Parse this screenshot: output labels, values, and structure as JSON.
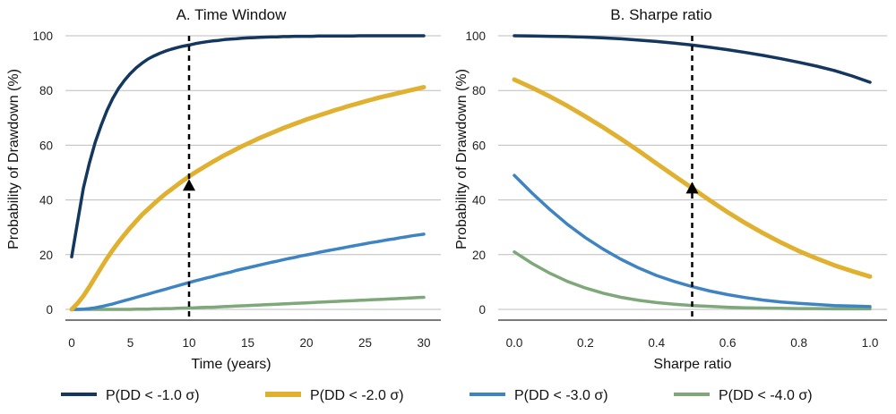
{
  "chart_data": [
    {
      "type": "line",
      "title": "A. Time Window",
      "xlabel": "Time (years)",
      "ylabel": "Probability of Drawdown (%)",
      "xlim": [
        0,
        30
      ],
      "ylim": [
        0,
        100
      ],
      "xticks": [
        "0",
        "5",
        "10",
        "15",
        "20",
        "25",
        "30"
      ],
      "yticks": [
        "0",
        "20",
        "40",
        "60",
        "80",
        "100"
      ],
      "grid": "horizontal",
      "x": [
        0,
        0.5,
        1,
        1.5,
        2,
        2.5,
        3,
        3.5,
        4,
        4.5,
        5,
        5.5,
        6,
        6.5,
        7,
        7.5,
        8,
        8.5,
        9,
        9.5,
        10,
        10.5,
        11,
        11.5,
        12,
        12.5,
        13,
        13.5,
        14,
        14.5,
        15,
        15.5,
        16,
        16.5,
        17,
        17.5,
        18,
        18.5,
        19,
        19.5,
        20,
        20.5,
        21,
        21.5,
        22,
        22.5,
        23,
        23.5,
        24,
        24.5,
        25,
        25.5,
        26,
        26.5,
        27,
        27.5,
        28,
        28.5,
        29,
        29.5,
        30
      ],
      "series": [
        {
          "name": "P(DD < -1.0 σ)",
          "color": "#13375f",
          "values": [
            19.2,
            31.8,
            44.4,
            53.4,
            61.0,
            67.2,
            72.6,
            77.1,
            80.8,
            83.7,
            86.2,
            88.3,
            90.0,
            91.5,
            92.6,
            93.6,
            94.4,
            95.1,
            95.7,
            96.2,
            96.6,
            97.1,
            97.5,
            97.8,
            98.1,
            98.3,
            98.6,
            98.8,
            98.9,
            99.1,
            99.2,
            99.3,
            99.4,
            99.5,
            99.6,
            99.6,
            99.7,
            99.7,
            99.8,
            99.8,
            99.8,
            99.8,
            99.9,
            99.9,
            99.9,
            99.9,
            99.9,
            99.9,
            99.9,
            100.0,
            100.0,
            100.0,
            100.0,
            100.0,
            100.0,
            100.0,
            100.0,
            100.0,
            100.0,
            100.0,
            100.0
          ]
        },
        {
          "name": "P(DD < -2.0 σ)",
          "color": "#e0b030",
          "values": [
            0.0,
            2.2,
            4.9,
            8.2,
            11.7,
            15.2,
            18.6,
            21.7,
            24.6,
            27.3,
            29.9,
            32.3,
            34.6,
            36.6,
            38.6,
            40.5,
            42.3,
            43.9,
            45.5,
            47.1,
            48.6,
            50.0,
            51.3,
            52.6,
            53.9,
            55.1,
            56.3,
            57.4,
            58.5,
            59.6,
            60.6,
            61.6,
            62.6,
            63.5,
            64.4,
            65.3,
            66.2,
            67.0,
            67.8,
            68.6,
            69.4,
            70.1,
            70.8,
            71.5,
            72.2,
            72.9,
            73.5,
            74.2,
            74.8,
            75.4,
            76.0,
            76.6,
            77.2,
            77.7,
            78.2,
            78.7,
            79.2,
            79.7,
            80.2,
            80.7,
            81.2
          ]
        },
        {
          "name": "P(DD < -3.0 σ)",
          "color": "#3f84c2",
          "values": [
            0.0,
            0.0,
            0.1,
            0.3,
            0.6,
            1.0,
            1.5,
            2.0,
            2.6,
            3.2,
            3.8,
            4.4,
            5.0,
            5.6,
            6.2,
            6.8,
            7.4,
            8.0,
            8.6,
            9.2,
            9.8,
            10.4,
            10.9,
            11.5,
            12.0,
            12.6,
            13.1,
            13.6,
            14.2,
            14.7,
            15.2,
            15.7,
            16.2,
            16.7,
            17.2,
            17.6,
            18.1,
            18.6,
            19.0,
            19.5,
            19.9,
            20.3,
            20.8,
            21.2,
            21.6,
            22.0,
            22.4,
            22.8,
            23.2,
            23.6,
            24.0,
            24.4,
            24.7,
            25.1,
            25.5,
            25.8,
            26.2,
            26.5,
            26.9,
            27.2,
            27.5
          ]
        },
        {
          "name": "P(DD < -4.0 σ)",
          "color": "#7fa87a",
          "values": [
            0.0,
            0.0,
            0.0,
            0.0,
            0.0,
            0.0,
            0.0,
            0.0,
            0.0,
            0.0,
            0.0,
            0.1,
            0.1,
            0.1,
            0.2,
            0.2,
            0.3,
            0.3,
            0.4,
            0.5,
            0.5,
            0.6,
            0.7,
            0.8,
            0.8,
            0.9,
            1.0,
            1.1,
            1.2,
            1.3,
            1.4,
            1.5,
            1.6,
            1.7,
            1.8,
            1.9,
            2.0,
            2.1,
            2.2,
            2.3,
            2.4,
            2.5,
            2.6,
            2.7,
            2.8,
            2.9,
            3.0,
            3.1,
            3.2,
            3.3,
            3.4,
            3.5,
            3.6,
            3.7,
            3.8,
            3.9,
            4.0,
            4.1,
            4.2,
            4.3,
            4.4
          ]
        }
      ],
      "reference_line": {
        "x": 10,
        "style": "dashed"
      },
      "marker": {
        "x": 10,
        "y": 45,
        "shape": "triangle"
      }
    },
    {
      "type": "line",
      "title": "B. Sharpe ratio",
      "xlabel": "Sharpe ratio",
      "ylabel": "Probability of Drawdown (%)",
      "xlim": [
        0,
        1
      ],
      "ylim": [
        0,
        100
      ],
      "xticks": [
        "0.0",
        "0.2",
        "0.4",
        "0.6",
        "0.8",
        "1.0"
      ],
      "yticks": [
        "0",
        "20",
        "40",
        "60",
        "80",
        "100"
      ],
      "grid": "horizontal",
      "x": [
        0,
        0.05,
        0.1,
        0.15,
        0.2,
        0.25,
        0.3,
        0.35,
        0.4,
        0.45,
        0.5,
        0.55,
        0.6,
        0.65,
        0.7,
        0.75,
        0.8,
        0.85,
        0.9,
        0.95,
        1
      ],
      "series": [
        {
          "name": "P(DD < -1.0 σ)",
          "color": "#13375f",
          "values": [
            100.0,
            99.9,
            99.8,
            99.7,
            99.5,
            99.2,
            98.9,
            98.4,
            97.9,
            97.3,
            96.6,
            95.8,
            94.9,
            93.9,
            92.8,
            91.6,
            90.3,
            88.9,
            87.3,
            85.3,
            83.0
          ]
        },
        {
          "name": "P(DD < -2.0 σ)",
          "color": "#e0b030",
          "values": [
            84.0,
            81.0,
            77.8,
            74.3,
            70.5,
            66.5,
            62.3,
            57.9,
            53.3,
            48.8,
            44.3,
            39.8,
            35.5,
            31.5,
            27.8,
            24.4,
            21.3,
            18.6,
            16.1,
            14.0,
            12.0
          ]
        },
        {
          "name": "P(DD < -3.0 σ)",
          "color": "#3f84c2",
          "values": [
            49.0,
            42.5,
            36.5,
            31.0,
            26.2,
            22.0,
            18.3,
            15.1,
            12.4,
            10.2,
            8.3,
            6.7,
            5.4,
            4.3,
            3.4,
            2.7,
            2.2,
            1.8,
            1.4,
            1.2,
            1.0
          ]
        },
        {
          "name": "P(DD < -4.0 σ)",
          "color": "#7fa87a",
          "values": [
            21.0,
            16.8,
            13.2,
            10.2,
            7.8,
            5.9,
            4.4,
            3.3,
            2.5,
            1.9,
            1.4,
            1.1,
            0.8,
            0.6,
            0.5,
            0.4,
            0.3,
            0.3,
            0.2,
            0.2,
            0.2
          ]
        }
      ],
      "reference_line": {
        "x": 0.5,
        "style": "dashed"
      },
      "marker": {
        "x": 0.5,
        "y": 44,
        "shape": "triangle"
      }
    }
  ],
  "legend": {
    "placement": "bottom",
    "items": [
      {
        "label": "P(DD < -1.0 σ)",
        "color": "#13375f"
      },
      {
        "label": "P(DD < -2.0 σ)",
        "color": "#e0b030"
      },
      {
        "label": "P(DD < -3.0 σ)",
        "color": "#3f84c2"
      },
      {
        "label": "P(DD < -4.0 σ)",
        "color": "#7fa87a"
      }
    ]
  },
  "colors": {
    "grid": "#bdbdbd",
    "axis": "#7a7a7a",
    "reference": "#000000"
  }
}
